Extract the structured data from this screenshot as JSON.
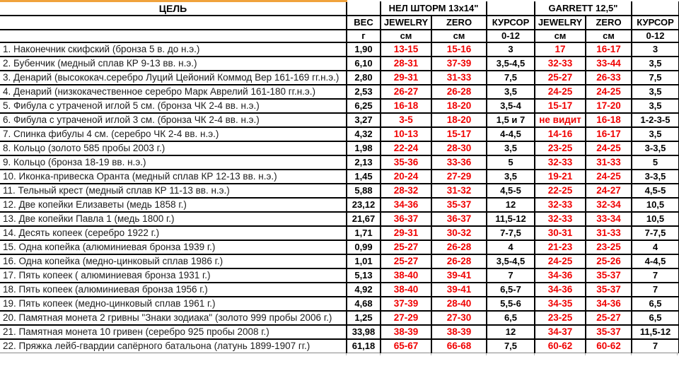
{
  "colors": {
    "red_value": "#f00000",
    "orange_accent": "#f0a23c",
    "border": "#000000"
  },
  "table": {
    "header": {
      "target": "ЦЕЛЬ",
      "group_nel": "НЕЛ ШТОРМ 13x14\"",
      "group_garrett": "GARRETT 12,5\"",
      "col_weight": "ВЕС",
      "col_jewelry": "JEWELRY",
      "col_zero": "ZERO",
      "col_cursor": "КУРСОР",
      "unit_weight": "г",
      "unit_cm": "см",
      "unit_cursor": "0-12"
    },
    "rows": [
      [
        "1. Наконечник скифский (бронза 5 в. до н.э.)",
        "1,90",
        "13-15",
        "15-16",
        "3",
        "17",
        "16-17",
        "3"
      ],
      [
        "2. Бубенчик (медный сплав КР 9-13 вв. н.э.)",
        "6,10",
        "28-31",
        "37-39",
        "3,5-4,5",
        "32-33",
        "33-44",
        "3,5"
      ],
      [
        "3. Денарий (высококач.серебро Луций Цейоний Коммод Вер 161-169 гг.н.э.)",
        "2,80",
        "29-31",
        "31-33",
        "7,5",
        "25-27",
        "26-33",
        "7,5"
      ],
      [
        "4. Денарий (низкокачественное серебро Марк Аврелий 161-180 гг.н.э.)",
        "2,53",
        "26-27",
        "26-28",
        "3,5",
        "24-25",
        "24-25",
        "3,5"
      ],
      [
        "5. Фибула с утраченой иглой 5 см. (бронза ЧК 2-4 вв. н.э.)",
        "6,25",
        "16-18",
        "18-20",
        "3,5-4",
        "15-17",
        "17-20",
        "3,5"
      ],
      [
        "6. Фибула с утраченой иглой 3 см. (бронза ЧК 2-4 вв. н.э.)",
        "3,27",
        "3-5",
        "18-20",
        "1,5 и 7",
        "не видит",
        "16-18",
        "1-2-3-5"
      ],
      [
        "7. Спинка фибулы 4 см. (серебро ЧК 2-4 вв. н.э.)",
        "4,32",
        "10-13",
        "15-17",
        "4-4,5",
        "14-16",
        "16-17",
        "3,5"
      ],
      [
        "8. Кольцо (золото 585 пробы 2003 г.)",
        "1,98",
        "22-24",
        "28-30",
        "3,5",
        "23-25",
        "24-25",
        "3-3,5"
      ],
      [
        "9. Кольцо (бронза 18-19 вв. н.э.)",
        "2,13",
        "35-36",
        "33-36",
        "5",
        "32-33",
        "31-33",
        "5"
      ],
      [
        "10. Иконка-привеска Оранта (медный сплав КР 12-13 вв. н.э.)",
        "1,45",
        "20-24",
        "27-29",
        "3,5",
        "19-21",
        "24-25",
        "3-3,5"
      ],
      [
        "11. Тельный крест (медный сплав КР 11-13 вв. н.э.)",
        "5,88",
        "28-32",
        "31-32",
        "4,5-5",
        "22-25",
        "24-27",
        "4,5-5"
      ],
      [
        "12. Две копейки Елизаветы  (медь 1858 г.)",
        "23,12",
        "34-36",
        "35-37",
        "12",
        "32-33",
        "32-34",
        "10,5"
      ],
      [
        "13. Две копейки Павла 1 (медь 1800 г.)",
        "21,67",
        "36-37",
        "36-37",
        "11,5-12",
        "32-33",
        "33-34",
        "10,5"
      ],
      [
        "14. Десять копеек (серебро 1922 г.)",
        "1,71",
        "29-31",
        "30-32",
        "7-7,5",
        "30-31",
        "31-33",
        "7-7,5"
      ],
      [
        "15. Одна копейка (алюминиевая бронза 1939 г.)",
        "0,99",
        "25-27",
        "26-28",
        "4",
        "21-23",
        "23-25",
        "4"
      ],
      [
        "16. Одна копейка (медно-цинковый сплав 1986 г.)",
        "1,01",
        "25-27",
        "26-28",
        "3,5-4,5",
        "24-25",
        "25-26",
        "4-4,5"
      ],
      [
        "17. Пять копеек ( алюминиевая бронза 1931 г.)",
        "5,13",
        "38-40",
        "39-41",
        "7",
        "34-36",
        "35-37",
        "7"
      ],
      [
        "18. Пять копеек (алюминиевая бронза 1956 г.)",
        "4,92",
        "38-40",
        "39-41",
        "6,5-7",
        "34-36",
        "35-37",
        "7"
      ],
      [
        "19. Пять копеек (медно-цинковый сплав 1961 г.)",
        "4,68",
        "37-39",
        "28-40",
        "5,5-6",
        "34-35",
        "34-36",
        "6,5"
      ],
      [
        "20. Памятная монета 2 гривны \"Знаки зодиака\" (золото 999 пробы 2006 г.)",
        "1,25",
        "27-29",
        "27-30",
        "6,5",
        "23-25",
        "25-27",
        "6,5"
      ],
      [
        "21. Памятная монета 10 гривен (серебро 925 пробы 2008 г.)",
        "33,98",
        "38-39",
        "38-39",
        "12",
        "34-37",
        "35-37",
        "11,5-12"
      ],
      [
        "22. Пряжка лейб-гвардии сапёрного батальона (латунь 1899-1907 гг.)",
        "61,18",
        "65-67",
        "66-68",
        "7,5",
        "60-62",
        "60-62",
        "7"
      ]
    ]
  }
}
